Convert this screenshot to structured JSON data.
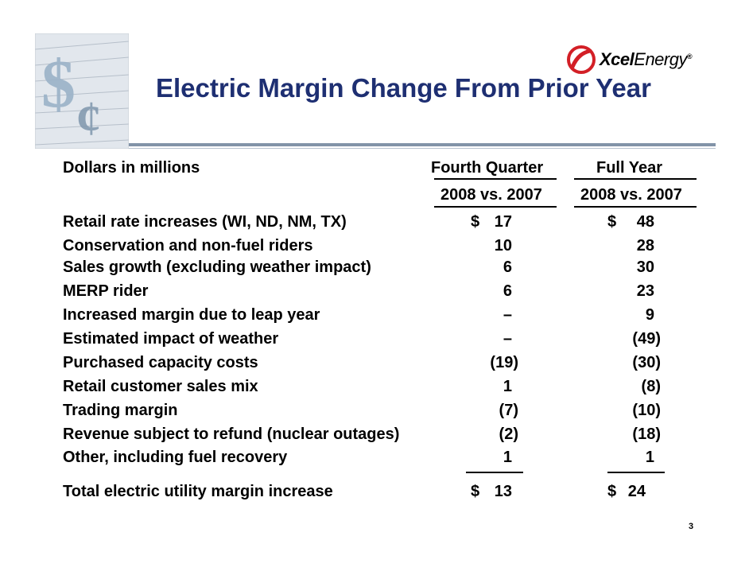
{
  "title": "Electric Margin Change From Prior Year",
  "logo": {
    "brand_bold": "Xcel",
    "brand_light": "Energy",
    "reg": "®"
  },
  "table": {
    "units_label": "Dollars in millions",
    "col1_header": "Fourth Quarter",
    "col2_header": "Full Year",
    "col1_sub": "2008 vs. 2007",
    "col2_sub": "2008 vs. 2007",
    "rows": [
      {
        "label": "Retail rate increases (WI, ND, NM, TX)",
        "q": "17",
        "y": "48",
        "q_dollar": "$",
        "y_dollar": "$"
      },
      {
        "label": "Conservation and non-fuel riders",
        "q": "10",
        "y": "28"
      },
      {
        "label": "Sales growth (excluding weather impact)",
        "q": "6",
        "y": "30"
      },
      {
        "label": "MERP rider",
        "q": "6",
        "y": "23"
      },
      {
        "label": "Increased margin due to leap year",
        "q": "–",
        "y": "9"
      },
      {
        "label": "Estimated impact of weather",
        "q": "–",
        "y": "(49)"
      },
      {
        "label": "Purchased capacity costs",
        "q": "(19)",
        "y": "(30)"
      },
      {
        "label": "Retail customer sales mix",
        "q": "1",
        "y": "(8)"
      },
      {
        "label": "Trading margin",
        "q": "(7)",
        "y": "(10)"
      },
      {
        "label": "Revenue subject to refund (nuclear outages)",
        "q": "(2)",
        "y": "(18)"
      },
      {
        "label": "Other, including fuel recovery",
        "q": "1",
        "y": "1"
      }
    ],
    "total": {
      "label": "Total electric utility margin increase",
      "q": "13",
      "y": "24",
      "q_dollar": "$",
      "y_dollar": "$"
    }
  },
  "page_number": "3",
  "colors": {
    "title": "#1e2f72",
    "logo_red": "#d31f26",
    "rule": "#8293a8"
  }
}
